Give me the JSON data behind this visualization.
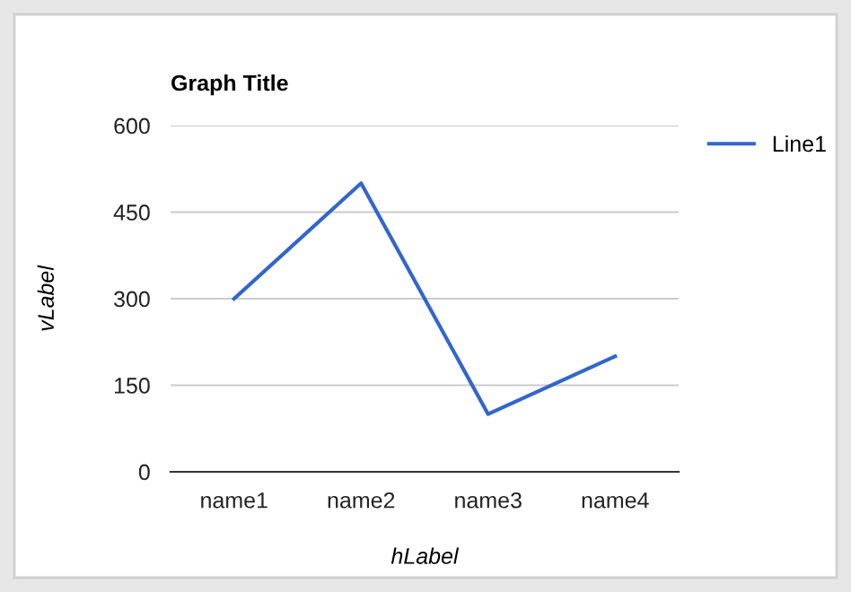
{
  "chart_data": {
    "type": "line",
    "title": "Graph Title",
    "xlabel": "hLabel",
    "ylabel": "vLabel",
    "categories": [
      "name1",
      "name2",
      "name3",
      "name4"
    ],
    "series": [
      {
        "name": "Line1",
        "color": "#3366cc",
        "values": [
          300,
          500,
          100,
          200
        ]
      }
    ],
    "ylim": [
      0,
      600
    ],
    "yticks": [
      0,
      150,
      300,
      450,
      600
    ],
    "grid": "y",
    "legend": "top right",
    "marker": "none",
    "line_style": "solid"
  }
}
